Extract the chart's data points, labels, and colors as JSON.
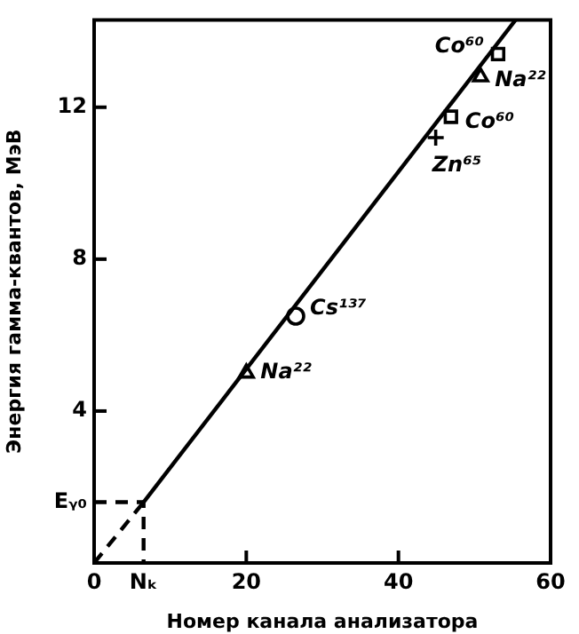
{
  "chart_data": {
    "type": "line",
    "xlabel": "Номер канала анализатора",
    "ylabel": "Энергия гамма-квантов, МэВ",
    "xlim": [
      0,
      60
    ],
    "ylim": [
      0,
      14.3
    ],
    "xticks": [
      0,
      {
        "value": 6.5,
        "label": "Nₖ"
      },
      20,
      40,
      60
    ],
    "yticks": [
      {
        "value": 1.6,
        "label": "Eᵧ₀"
      },
      4,
      8,
      12
    ],
    "grid": false,
    "legend": false,
    "series": [
      {
        "line_style": "dashed",
        "color": "#000000",
        "x": [
          0,
          6.5
        ],
        "values": [
          0,
          1.6
        ]
      },
      {
        "line_style": "dashed",
        "color": "#000000",
        "x": [
          0,
          6.5,
          6.5
        ],
        "values": [
          1.6,
          1.6,
          0
        ]
      },
      {
        "line_style": "solid",
        "color": "#000000",
        "x": [
          6.5,
          55.4
        ],
        "values": [
          1.6,
          14.3
        ]
      },
      {
        "type": "scatter",
        "marker": "triangle",
        "color": "#000000",
        "x": [
          20,
          50.8
        ],
        "values": [
          5.0,
          12.8
        ]
      },
      {
        "type": "scatter",
        "marker": "circle",
        "color": "#000000",
        "x": [
          26.5
        ],
        "values": [
          6.5
        ]
      },
      {
        "type": "scatter",
        "marker": "cross",
        "color": "#000000",
        "x": [
          44.9
        ],
        "values": [
          11.2
        ]
      },
      {
        "type": "scatter",
        "marker": "square",
        "color": "#000000",
        "x": [
          46.9,
          53.1
        ],
        "values": [
          11.75,
          13.4
        ]
      }
    ],
    "annotations": [
      {
        "text": "Na²²",
        "x": 20,
        "y": 5.0
      },
      {
        "text": "Cs¹³⁷",
        "x": 26.5,
        "y": 6.5
      },
      {
        "text": "Zn⁶⁵",
        "x": 44.9,
        "y": 11.2
      },
      {
        "text": "Co⁶⁰",
        "x": 46.9,
        "y": 11.75
      },
      {
        "text": "Na²²",
        "x": 50.8,
        "y": 12.8
      },
      {
        "text": "Co⁶⁰",
        "x": 53.1,
        "y": 13.4
      }
    ]
  }
}
